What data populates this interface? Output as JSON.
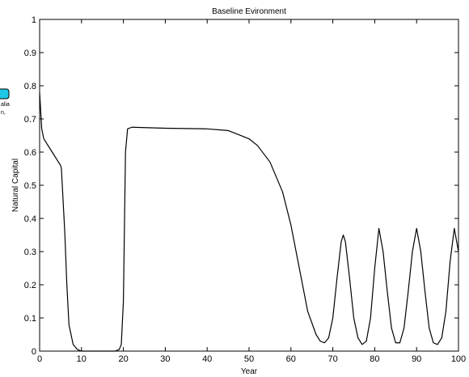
{
  "chart_data": {
    "type": "line",
    "title": "Baseline Evironment",
    "xlabel": "Year",
    "ylabel": "Natural Capital",
    "xlim": [
      0,
      100
    ],
    "ylim": [
      0,
      1
    ],
    "x_ticks": [
      "0",
      "10",
      "20",
      "30",
      "40",
      "50",
      "60",
      "70",
      "80",
      "90",
      "100"
    ],
    "y_ticks": [
      "0",
      "0.1",
      "0.2",
      "0.3",
      "0.4",
      "0.5",
      "0.6",
      "0.7",
      "0.8",
      "0.9",
      "1"
    ],
    "grid": false,
    "line_color": "#000000",
    "series": [
      {
        "x": [
          0,
          0.5,
          1,
          2,
          3,
          4,
          5,
          5.2,
          6,
          6.5,
          7,
          8,
          9,
          10,
          12,
          15,
          18,
          19,
          19.5,
          20,
          20.5,
          21,
          22,
          30,
          40,
          45,
          50,
          52,
          55,
          58,
          60,
          62,
          64,
          66,
          67,
          68,
          69,
          70,
          71,
          72,
          72.5,
          73,
          74,
          75,
          76,
          77,
          78,
          79,
          80,
          81,
          82,
          83,
          84,
          85,
          86,
          87,
          88,
          89,
          90,
          91,
          92,
          93,
          94,
          95,
          96,
          97,
          98,
          99,
          100
        ],
        "y": [
          0.78,
          0.67,
          0.64,
          0.62,
          0.6,
          0.58,
          0.56,
          0.55,
          0.36,
          0.2,
          0.08,
          0.02,
          0.005,
          0.0,
          0.0,
          0.0,
          0.0,
          0.005,
          0.02,
          0.15,
          0.6,
          0.67,
          0.675,
          0.672,
          0.67,
          0.665,
          0.64,
          0.62,
          0.57,
          0.48,
          0.38,
          0.25,
          0.12,
          0.05,
          0.03,
          0.025,
          0.04,
          0.1,
          0.22,
          0.33,
          0.35,
          0.33,
          0.22,
          0.1,
          0.04,
          0.02,
          0.03,
          0.1,
          0.25,
          0.37,
          0.3,
          0.18,
          0.07,
          0.025,
          0.025,
          0.07,
          0.18,
          0.3,
          0.37,
          0.3,
          0.18,
          0.07,
          0.025,
          0.02,
          0.04,
          0.12,
          0.27,
          0.37,
          0.3
        ]
      }
    ]
  },
  "legend_fragment": {
    "line1": "alia",
    "line2": "n,"
  }
}
